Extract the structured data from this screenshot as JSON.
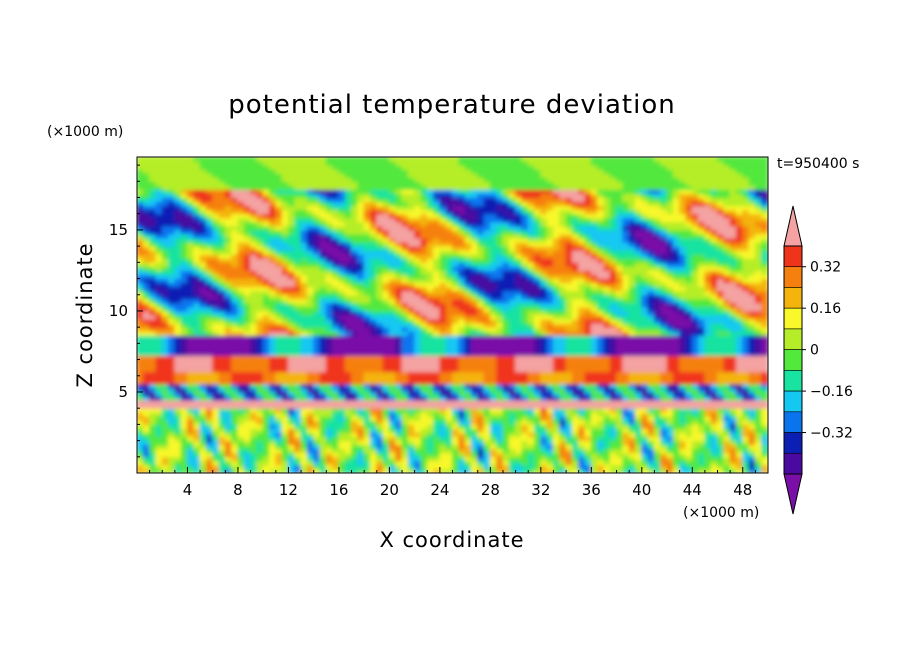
{
  "chart_data": {
    "type": "heatmap",
    "title": "potential temperature deviation",
    "xlabel": "X coordinate",
    "ylabel": "Z coordinate",
    "x_unit": "(×1000 m)",
    "y_unit": "(×1000 m)",
    "time_label": "t=950400 s",
    "xlim": [
      0,
      50
    ],
    "ylim": [
      0,
      19.5
    ],
    "x_ticks": [
      4,
      8,
      12,
      16,
      20,
      24,
      28,
      32,
      36,
      40,
      44,
      48
    ],
    "y_ticks": [
      5,
      10,
      15
    ],
    "colorbar": {
      "colors": [
        "#7a0fa8",
        "#4a0aa0",
        "#0c1fb4",
        "#0a74ef",
        "#14c8f2",
        "#18e3a0",
        "#52e83c",
        "#b5ee28",
        "#f8f82a",
        "#f4b40c",
        "#f6800e",
        "#f0341c",
        "#f4a2a2"
      ],
      "tick_values": [
        -0.32,
        -0.16,
        0,
        0.16,
        0.32
      ],
      "tick_labels": [
        "−0.32",
        "−0.16",
        "0",
        "0.16",
        "0.32"
      ],
      "extend": "both"
    },
    "field_bands": [
      {
        "z_range": [
          0,
          4
        ],
        "character": "convective plumes, mixed ±"
      },
      {
        "z_range": [
          4,
          4.5
        ],
        "value": 0.4
      },
      {
        "z_range": [
          4.5,
          7.5
        ],
        "character": "layered positive and negative deviations"
      },
      {
        "z_range": [
          7.5,
          17.5
        ],
        "character": "large warm and cold eddies"
      },
      {
        "z_range": [
          17.5,
          19.5
        ],
        "character": "weak deviations near 0"
      }
    ]
  }
}
